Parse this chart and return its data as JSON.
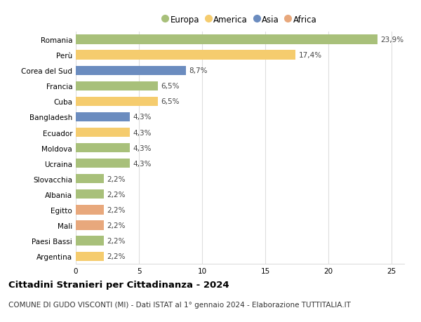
{
  "categories": [
    "Romania",
    "Perù",
    "Corea del Sud",
    "Francia",
    "Cuba",
    "Bangladesh",
    "Ecuador",
    "Moldova",
    "Ucraina",
    "Slovacchia",
    "Albania",
    "Egitto",
    "Mali",
    "Paesi Bassi",
    "Argentina"
  ],
  "values": [
    23.9,
    17.4,
    8.7,
    6.5,
    6.5,
    4.3,
    4.3,
    4.3,
    4.3,
    2.2,
    2.2,
    2.2,
    2.2,
    2.2,
    2.2
  ],
  "labels": [
    "23,9%",
    "17,4%",
    "8,7%",
    "6,5%",
    "6,5%",
    "4,3%",
    "4,3%",
    "4,3%",
    "4,3%",
    "2,2%",
    "2,2%",
    "2,2%",
    "2,2%",
    "2,2%",
    "2,2%"
  ],
  "continents": [
    "Europa",
    "America",
    "Asia",
    "Europa",
    "America",
    "Asia",
    "America",
    "Europa",
    "Europa",
    "Europa",
    "Europa",
    "Africa",
    "Africa",
    "Europa",
    "America"
  ],
  "continent_colors": {
    "Europa": "#a8c07a",
    "America": "#f5cc6e",
    "Asia": "#6b8cbf",
    "Africa": "#e8a87c"
  },
  "legend_order": [
    "Europa",
    "America",
    "Asia",
    "Africa"
  ],
  "xlim": [
    0,
    26
  ],
  "xticks": [
    0,
    5,
    10,
    15,
    20,
    25
  ],
  "title": "Cittadini Stranieri per Cittadinanza - 2024",
  "subtitle": "COMUNE DI GUDO VISCONTI (MI) - Dati ISTAT al 1° gennaio 2024 - Elaborazione TUTTITALIA.IT",
  "title_fontsize": 9.5,
  "subtitle_fontsize": 7.5,
  "label_fontsize": 7.5,
  "tick_fontsize": 7.5,
  "legend_fontsize": 8.5,
  "bar_height": 0.6,
  "background_color": "#ffffff",
  "grid_color": "#dddddd",
  "value_label_color": "#444444"
}
